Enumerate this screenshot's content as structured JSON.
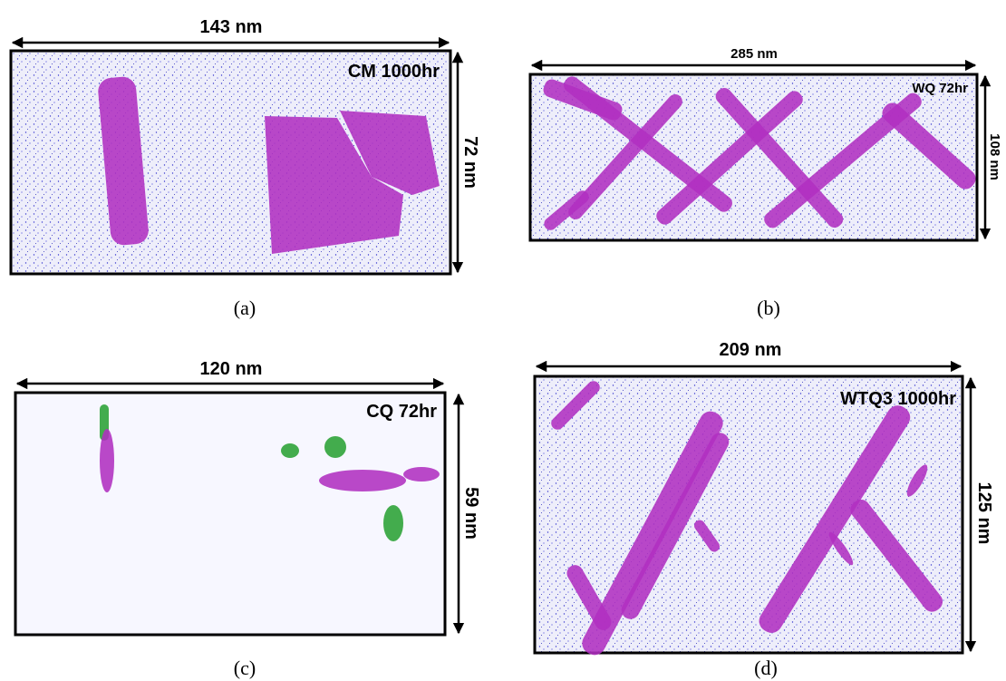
{
  "panels": [
    {
      "width_label": "143 nm",
      "height_label": "72 nm",
      "sample": "CM 1000hr",
      "caption": "(a)"
    },
    {
      "width_label": "285 nm",
      "height_label": "108 nm",
      "sample": "WQ 72hr",
      "caption": "(b)"
    },
    {
      "width_label": "120 nm",
      "height_label": "59 nm",
      "sample": "CQ 72hr",
      "caption": "(c)"
    },
    {
      "width_label": "209 nm",
      "height_label": "125 nm",
      "sample": "WTQ3 1000hr",
      "caption": "(d)"
    }
  ]
}
